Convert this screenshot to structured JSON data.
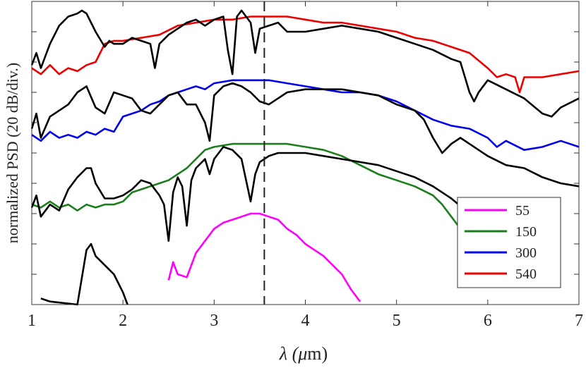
{
  "chart_data": {
    "type": "line",
    "title": "",
    "xlabel_prefix": "λ (",
    "xlabel_unit_mu": "μ",
    "xlabel_suffix": "m)",
    "ylabel": "normalized PSD (20 dB/div.)",
    "xlim": [
      1,
      7
    ],
    "ylim": [
      0,
      10
    ],
    "x_ticks": [
      "1",
      "2",
      "3",
      "4",
      "5",
      "6",
      "7"
    ],
    "y_ticks_count": 10,
    "dashed_line_x": 3.55,
    "legend_position": "bottom-right",
    "legend": [
      {
        "label": "55",
        "color": "#ff00ff"
      },
      {
        "label": "150",
        "color": "#1a7f1a"
      },
      {
        "label": "300",
        "color": "#0000ee"
      },
      {
        "label": "540",
        "color": "#ee0000"
      }
    ],
    "series": [
      {
        "color": "#ff00ff",
        "points": [
          [
            2.5,
            0.8
          ],
          [
            2.55,
            1.4
          ],
          [
            2.6,
            1.0
          ],
          [
            2.7,
            0.9
          ],
          [
            2.8,
            1.7
          ],
          [
            2.9,
            2.1
          ],
          [
            3.0,
            2.5
          ],
          [
            3.1,
            2.7
          ],
          [
            3.2,
            2.8
          ],
          [
            3.3,
            2.9
          ],
          [
            3.4,
            3.0
          ],
          [
            3.5,
            3.0
          ],
          [
            3.6,
            2.9
          ],
          [
            3.7,
            2.8
          ],
          [
            3.8,
            2.5
          ],
          [
            3.9,
            2.3
          ],
          [
            4.0,
            2.0
          ],
          [
            4.1,
            1.8
          ],
          [
            4.2,
            1.6
          ],
          [
            4.3,
            1.3
          ],
          [
            4.4,
            1.0
          ],
          [
            4.5,
            0.5
          ],
          [
            4.6,
            0.1
          ]
        ]
      },
      {
        "color": "#1a7f1a",
        "points": [
          [
            1.0,
            3.3
          ],
          [
            1.1,
            3.2
          ],
          [
            1.2,
            3.4
          ],
          [
            1.3,
            3.2
          ],
          [
            1.4,
            3.3
          ],
          [
            1.5,
            3.1
          ],
          [
            1.6,
            3.3
          ],
          [
            1.7,
            3.2
          ],
          [
            1.8,
            3.3
          ],
          [
            1.9,
            3.3
          ],
          [
            2.0,
            3.4
          ],
          [
            2.1,
            3.7
          ],
          [
            2.2,
            3.8
          ],
          [
            2.3,
            3.9
          ],
          [
            2.4,
            4.0
          ],
          [
            2.5,
            4.1
          ],
          [
            2.6,
            4.3
          ],
          [
            2.7,
            4.5
          ],
          [
            2.8,
            4.8
          ],
          [
            2.9,
            5.1
          ],
          [
            3.0,
            5.2
          ],
          [
            3.2,
            5.3
          ],
          [
            3.4,
            5.3
          ],
          [
            3.6,
            5.3
          ],
          [
            3.8,
            5.3
          ],
          [
            4.0,
            5.2
          ],
          [
            4.2,
            5.1
          ],
          [
            4.4,
            4.9
          ],
          [
            4.6,
            4.6
          ],
          [
            4.8,
            4.3
          ],
          [
            5.0,
            4.1
          ],
          [
            5.2,
            3.9
          ],
          [
            5.4,
            3.6
          ],
          [
            5.5,
            3.3
          ],
          [
            5.6,
            2.9
          ],
          [
            5.7,
            2.5
          ],
          [
            5.75,
            2.3
          ]
        ]
      },
      {
        "color": "#0000ee",
        "points": [
          [
            1.0,
            5.6
          ],
          [
            1.1,
            5.4
          ],
          [
            1.2,
            5.7
          ],
          [
            1.3,
            5.5
          ],
          [
            1.4,
            5.6
          ],
          [
            1.5,
            5.5
          ],
          [
            1.6,
            5.7
          ],
          [
            1.7,
            5.6
          ],
          [
            1.8,
            5.8
          ],
          [
            1.9,
            5.7
          ],
          [
            2.0,
            6.2
          ],
          [
            2.1,
            6.3
          ],
          [
            2.2,
            6.4
          ],
          [
            2.3,
            6.6
          ],
          [
            2.4,
            6.7
          ],
          [
            2.5,
            6.9
          ],
          [
            2.6,
            7.0
          ],
          [
            2.7,
            7.1
          ],
          [
            2.8,
            7.2
          ],
          [
            2.9,
            7.1
          ],
          [
            3.0,
            7.3
          ],
          [
            3.2,
            7.4
          ],
          [
            3.4,
            7.4
          ],
          [
            3.6,
            7.4
          ],
          [
            3.8,
            7.3
          ],
          [
            4.0,
            7.2
          ],
          [
            4.2,
            7.1
          ],
          [
            4.4,
            7.0
          ],
          [
            4.6,
            7.0
          ],
          [
            4.8,
            6.9
          ],
          [
            5.0,
            6.7
          ],
          [
            5.2,
            6.4
          ],
          [
            5.4,
            6.1
          ],
          [
            5.6,
            5.9
          ],
          [
            5.8,
            5.8
          ],
          [
            6.0,
            5.5
          ],
          [
            6.1,
            5.2
          ],
          [
            6.2,
            5.4
          ],
          [
            6.4,
            5.1
          ],
          [
            6.6,
            5.2
          ],
          [
            6.8,
            5.4
          ],
          [
            7.0,
            5.2
          ]
        ]
      },
      {
        "color": "#ee0000",
        "points": [
          [
            1.0,
            7.8
          ],
          [
            1.1,
            7.6
          ],
          [
            1.2,
            7.9
          ],
          [
            1.3,
            7.6
          ],
          [
            1.4,
            7.8
          ],
          [
            1.5,
            7.7
          ],
          [
            1.6,
            7.9
          ],
          [
            1.7,
            8.0
          ],
          [
            1.8,
            8.6
          ],
          [
            1.9,
            8.7
          ],
          [
            2.0,
            8.7
          ],
          [
            2.2,
            8.8
          ],
          [
            2.4,
            8.9
          ],
          [
            2.6,
            9.2
          ],
          [
            2.8,
            9.3
          ],
          [
            3.0,
            9.4
          ],
          [
            3.2,
            9.4
          ],
          [
            3.4,
            9.5
          ],
          [
            3.6,
            9.5
          ],
          [
            3.8,
            9.5
          ],
          [
            4.0,
            9.4
          ],
          [
            4.2,
            9.3
          ],
          [
            4.4,
            9.3
          ],
          [
            4.6,
            9.2
          ],
          [
            4.8,
            9.1
          ],
          [
            5.0,
            9.0
          ],
          [
            5.2,
            8.8
          ],
          [
            5.4,
            8.7
          ],
          [
            5.6,
            8.5
          ],
          [
            5.8,
            8.3
          ],
          [
            6.0,
            7.8
          ],
          [
            6.1,
            7.5
          ],
          [
            6.2,
            7.6
          ],
          [
            6.3,
            7.5
          ],
          [
            6.35,
            7.0
          ],
          [
            6.4,
            7.5
          ],
          [
            6.6,
            7.5
          ],
          [
            6.8,
            7.6
          ],
          [
            7.0,
            7.7
          ]
        ]
      },
      {
        "color": "#000000",
        "points": [
          [
            1.1,
            0.2
          ],
          [
            1.2,
            0.1
          ],
          [
            1.5,
            0.0
          ],
          [
            1.6,
            1.8
          ],
          [
            1.65,
            2.0
          ],
          [
            1.7,
            1.6
          ],
          [
            1.8,
            1.3
          ],
          [
            1.9,
            1.0
          ],
          [
            2.0,
            0.4
          ],
          [
            2.05,
            0.0
          ]
        ]
      },
      {
        "color": "#000000",
        "points": [
          [
            1.0,
            3.2
          ],
          [
            1.05,
            3.6
          ],
          [
            1.1,
            2.9
          ],
          [
            1.2,
            3.3
          ],
          [
            1.3,
            3.1
          ],
          [
            1.4,
            3.8
          ],
          [
            1.5,
            4.2
          ],
          [
            1.6,
            4.5
          ],
          [
            1.65,
            4.5
          ],
          [
            1.7,
            4.0
          ],
          [
            1.8,
            3.5
          ],
          [
            1.9,
            3.5
          ],
          [
            2.0,
            3.6
          ],
          [
            2.1,
            3.8
          ],
          [
            2.2,
            4.1
          ],
          [
            2.3,
            4.0
          ],
          [
            2.4,
            3.6
          ],
          [
            2.45,
            3.3
          ],
          [
            2.5,
            2.1
          ],
          [
            2.55,
            3.7
          ],
          [
            2.6,
            4.2
          ],
          [
            2.65,
            3.9
          ],
          [
            2.7,
            2.6
          ],
          [
            2.75,
            4.1
          ],
          [
            2.8,
            4.5
          ],
          [
            2.9,
            4.8
          ],
          [
            2.95,
            4.3
          ],
          [
            3.0,
            4.8
          ],
          [
            3.1,
            5.2
          ],
          [
            3.2,
            5.1
          ],
          [
            3.3,
            4.8
          ],
          [
            3.4,
            3.4
          ],
          [
            3.45,
            4.3
          ],
          [
            3.5,
            4.7
          ],
          [
            3.6,
            4.9
          ],
          [
            3.7,
            5.0
          ],
          [
            3.8,
            5.0
          ],
          [
            4.0,
            5.0
          ],
          [
            4.2,
            4.9
          ],
          [
            4.4,
            4.8
          ],
          [
            4.6,
            4.7
          ],
          [
            4.8,
            4.6
          ],
          [
            5.0,
            4.4
          ],
          [
            5.2,
            4.2
          ],
          [
            5.4,
            3.9
          ],
          [
            5.6,
            3.5
          ],
          [
            5.8,
            3.0
          ],
          [
            6.0,
            2.5
          ],
          [
            6.1,
            2.2
          ]
        ]
      },
      {
        "color": "#000000",
        "points": [
          [
            1.0,
            5.8
          ],
          [
            1.05,
            6.3
          ],
          [
            1.1,
            5.5
          ],
          [
            1.2,
            6.2
          ],
          [
            1.3,
            6.4
          ],
          [
            1.4,
            6.6
          ],
          [
            1.5,
            7.0
          ],
          [
            1.6,
            7.2
          ],
          [
            1.7,
            6.5
          ],
          [
            1.8,
            6.3
          ],
          [
            1.9,
            7.0
          ],
          [
            2.0,
            6.9
          ],
          [
            2.1,
            6.8
          ],
          [
            2.2,
            6.4
          ],
          [
            2.3,
            6.3
          ],
          [
            2.4,
            6.6
          ],
          [
            2.5,
            6.9
          ],
          [
            2.6,
            7.0
          ],
          [
            2.7,
            6.6
          ],
          [
            2.8,
            6.6
          ],
          [
            2.9,
            6.0
          ],
          [
            2.95,
            5.4
          ],
          [
            3.0,
            6.9
          ],
          [
            3.1,
            7.2
          ],
          [
            3.2,
            7.3
          ],
          [
            3.3,
            7.2
          ],
          [
            3.4,
            7.0
          ],
          [
            3.5,
            6.7
          ],
          [
            3.6,
            6.6
          ],
          [
            3.7,
            6.8
          ],
          [
            3.8,
            7.0
          ],
          [
            4.0,
            7.1
          ],
          [
            4.2,
            7.1
          ],
          [
            4.4,
            7.1
          ],
          [
            4.6,
            7.0
          ],
          [
            4.8,
            6.9
          ],
          [
            5.0,
            6.6
          ],
          [
            5.2,
            6.4
          ],
          [
            5.3,
            6.1
          ],
          [
            5.4,
            5.5
          ],
          [
            5.5,
            5.0
          ],
          [
            5.6,
            5.3
          ],
          [
            5.7,
            5.5
          ],
          [
            5.8,
            5.3
          ],
          [
            6.0,
            4.9
          ],
          [
            6.2,
            4.6
          ],
          [
            6.4,
            4.5
          ],
          [
            6.6,
            4.2
          ],
          [
            6.8,
            4.0
          ],
          [
            7.0,
            3.9
          ]
        ]
      },
      {
        "color": "#000000",
        "points": [
          [
            1.0,
            7.9
          ],
          [
            1.05,
            8.3
          ],
          [
            1.1,
            7.8
          ],
          [
            1.2,
            8.6
          ],
          [
            1.3,
            9.2
          ],
          [
            1.4,
            9.5
          ],
          [
            1.5,
            9.6
          ],
          [
            1.55,
            9.7
          ],
          [
            1.6,
            9.6
          ],
          [
            1.7,
            9.0
          ],
          [
            1.8,
            8.5
          ],
          [
            1.85,
            8.7
          ],
          [
            1.9,
            8.6
          ],
          [
            2.0,
            8.6
          ],
          [
            2.1,
            8.8
          ],
          [
            2.2,
            8.7
          ],
          [
            2.3,
            8.6
          ],
          [
            2.35,
            7.8
          ],
          [
            2.4,
            8.6
          ],
          [
            2.5,
            8.9
          ],
          [
            2.6,
            9.1
          ],
          [
            2.7,
            9.3
          ],
          [
            2.8,
            9.4
          ],
          [
            2.9,
            9.2
          ],
          [
            3.0,
            9.4
          ],
          [
            3.1,
            9.5
          ],
          [
            3.15,
            8.4
          ],
          [
            3.2,
            7.6
          ],
          [
            3.25,
            9.5
          ],
          [
            3.3,
            9.7
          ],
          [
            3.4,
            9.3
          ],
          [
            3.45,
            8.3
          ],
          [
            3.5,
            9.1
          ],
          [
            3.6,
            9.2
          ],
          [
            3.7,
            9.3
          ],
          [
            3.8,
            9.0
          ],
          [
            4.0,
            9.0
          ],
          [
            4.2,
            9.1
          ],
          [
            4.4,
            9.2
          ],
          [
            4.6,
            9.1
          ],
          [
            4.8,
            9.0
          ],
          [
            5.0,
            8.8
          ],
          [
            5.2,
            8.6
          ],
          [
            5.4,
            8.4
          ],
          [
            5.6,
            8.1
          ],
          [
            5.7,
            8.0
          ],
          [
            5.8,
            7.0
          ],
          [
            5.85,
            6.7
          ],
          [
            5.9,
            7.0
          ],
          [
            6.0,
            7.4
          ],
          [
            6.2,
            7.1
          ],
          [
            6.4,
            6.8
          ],
          [
            6.6,
            6.3
          ],
          [
            6.7,
            6.2
          ],
          [
            6.8,
            6.5
          ],
          [
            7.0,
            6.8
          ]
        ]
      }
    ]
  }
}
